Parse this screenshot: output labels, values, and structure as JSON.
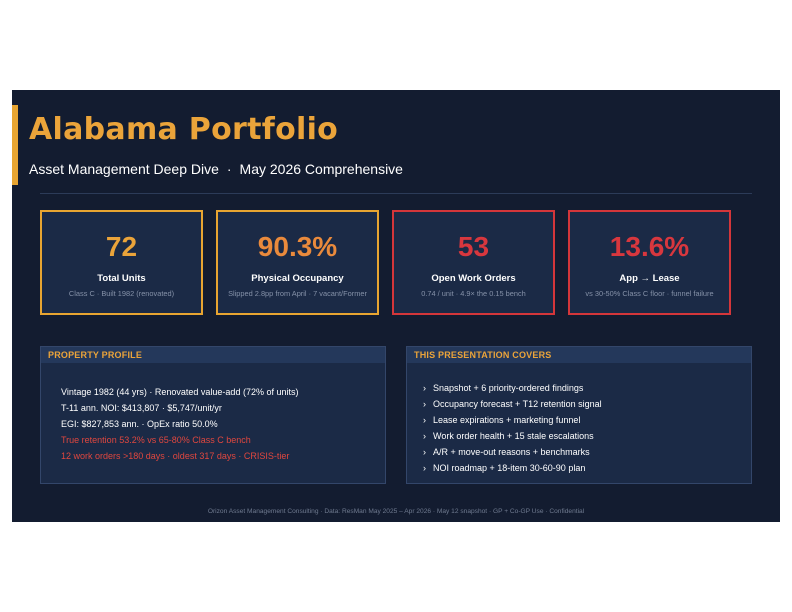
{
  "header": {
    "title": "Alabama Portfolio",
    "subtitle_left": "Asset Management Deep Dive",
    "subtitle_sep": "·",
    "subtitle_right": "May 2026 Comprehensive"
  },
  "stats": [
    {
      "value": "72",
      "label": "Total Units",
      "sub": "Class C · Built 1982 (renovated)"
    },
    {
      "value": "90.3%",
      "label": "Physical Occupancy",
      "sub": "Slipped 2.8pp from April · 7 vacant/Former"
    },
    {
      "value": "53",
      "label": "Open Work Orders",
      "sub": "0.74 / unit · 4.9× the 0.15 bench"
    },
    {
      "value": "13.6%",
      "label": "App → Lease",
      "sub": "vs 30-50% Class C floor · funnel failure"
    }
  ],
  "profile": {
    "heading": "PROPERTY PROFILE",
    "lines": [
      "Vintage 1982 (44 yrs)  ·  Renovated value-add (72% of units)",
      "T-11 ann. NOI: $413,807  ·  $5,747/unit/yr",
      "EGI: $827,853 ann.  ·  OpEx ratio 50.0%"
    ],
    "warnings": [
      "True retention 53.2% vs 65-80% Class C bench",
      "12 work orders >180 days · oldest 317 days · CRISIS-tier"
    ]
  },
  "covers": {
    "heading": "THIS PRESENTATION COVERS",
    "bullet": "›",
    "items": [
      "Snapshot + 6 priority-ordered findings",
      "Occupancy forecast + T12 retention signal",
      "Lease expirations + marketing funnel",
      "Work order health + 15 stale escalations",
      "A/R + move-out reasons + benchmarks",
      "NOI roadmap + 18-item 30-60-90 plan"
    ]
  },
  "footer": {
    "text": "Orizon Asset Management Consulting  ·  Data: ResMan May 2025 – Apr 2026  ·  May 12 snapshot  ·  GP + Co-GP Use  ·  Confidential"
  },
  "colors": {
    "background": "#131c30",
    "card": "#1b2a46",
    "accent_gold": "#eba43a",
    "accent_orange": "#ea8a3c",
    "alert_red": "#d8373e"
  }
}
